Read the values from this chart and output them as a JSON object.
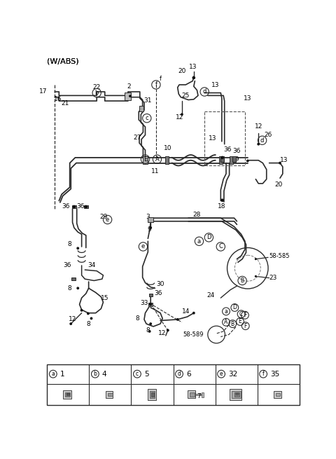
{
  "title": "(W/ABS)",
  "bg_color": "#ffffff",
  "lc": "#2a2a2a",
  "fig_width": 4.8,
  "fig_height": 6.55,
  "dpi": 100,
  "table_headers": [
    {
      "letter": "a",
      "num": "1"
    },
    {
      "letter": "b",
      "num": "4"
    },
    {
      "letter": "c",
      "num": "5"
    },
    {
      "letter": "d",
      "num": "6"
    },
    {
      "letter": "e",
      "num": "32"
    },
    {
      "letter": "f",
      "num": "35"
    }
  ],
  "table_sub": [
    "",
    "",
    "",
    "7",
    "",
    ""
  ]
}
